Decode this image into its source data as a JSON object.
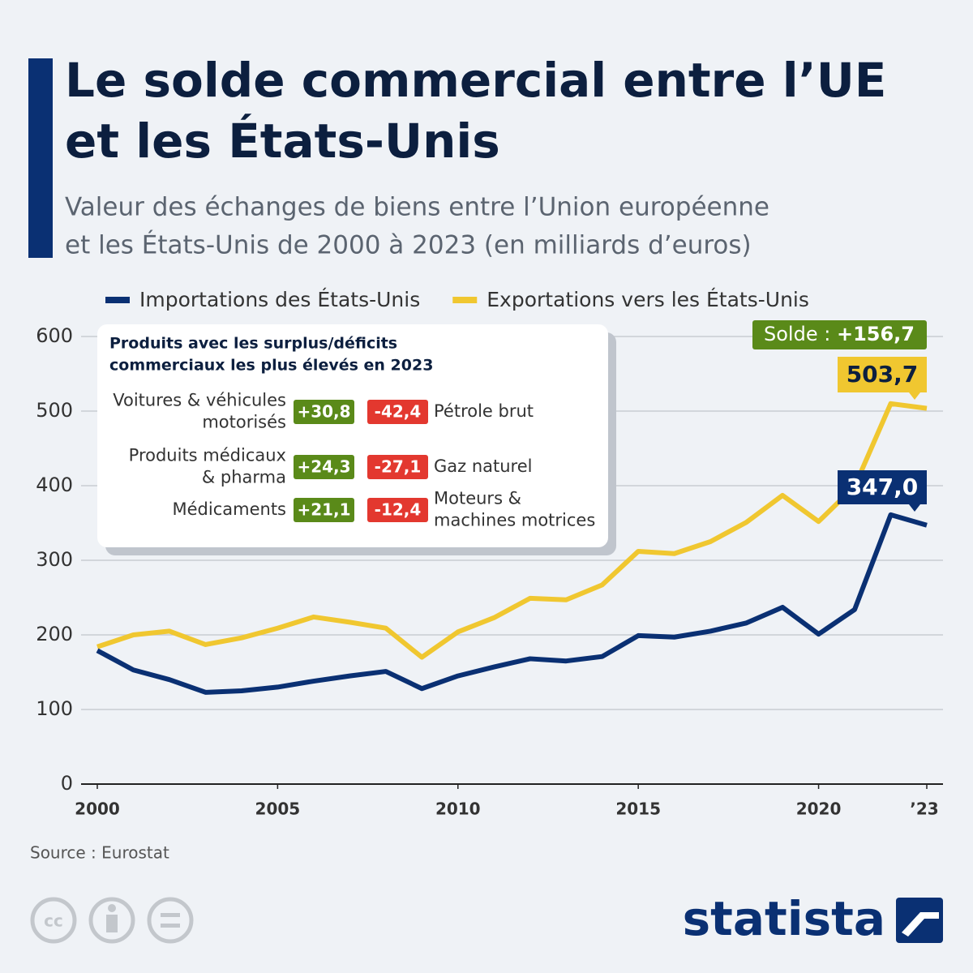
{
  "chart_data": {
    "type": "line",
    "title": [
      "Le solde commercial entre l’UE",
      "et les États-Unis"
    ],
    "subtitle": [
      "Valeur des échanges de biens entre l’Union européenne",
      "et les États-Unis de 2000 à 2023 (en milliards d’euros)"
    ],
    "x": [
      2000,
      2001,
      2002,
      2003,
      2004,
      2005,
      2006,
      2007,
      2008,
      2009,
      2010,
      2011,
      2012,
      2013,
      2014,
      2015,
      2016,
      2017,
      2018,
      2019,
      2020,
      2021,
      2022,
      2023
    ],
    "xlim": [
      2000,
      2023
    ],
    "xticks": [
      2000,
      2005,
      2010,
      2015,
      2020,
      {
        "value": 2023,
        "label": "’23"
      }
    ],
    "ylim": [
      0,
      600
    ],
    "yticks": [
      0,
      100,
      200,
      300,
      400,
      500,
      600
    ],
    "grid": true,
    "series": [
      {
        "name": "Importations des États-Unis",
        "color": "#0a3073",
        "values": [
          179,
          153,
          140,
          123,
          125,
          130,
          138,
          145,
          151,
          128,
          145,
          157,
          168,
          165,
          171,
          199,
          197,
          205,
          216,
          237,
          201,
          234,
          361,
          347.0
        ],
        "value_labels": [
          null,
          null,
          null,
          null,
          null,
          null,
          null,
          null,
          null,
          null,
          null,
          null,
          null,
          null,
          null,
          null,
          null,
          null,
          null,
          null,
          null,
          null,
          null,
          "347,0"
        ]
      },
      {
        "name": "Exportations vers les États-Unis",
        "color": "#f0c730",
        "values": [
          184,
          200,
          205,
          187,
          196,
          209,
          224,
          217,
          209,
          170,
          204,
          223,
          249,
          247,
          267,
          312,
          309,
          325,
          351,
          387,
          352,
          399,
          510,
          503.7
        ],
        "value_labels": [
          null,
          null,
          null,
          null,
          null,
          null,
          null,
          null,
          null,
          null,
          null,
          null,
          null,
          null,
          null,
          null,
          null,
          null,
          null,
          null,
          null,
          null,
          null,
          "503,7"
        ]
      }
    ],
    "annotation": {
      "prefix": "Solde :",
      "text": "+156,7"
    },
    "inset": {
      "title": [
        "Produits avec les surplus/déficits",
        "commerciaux les plus élevés en 2023"
      ],
      "rows": [
        {
          "left": [
            "Voitures & véhicules",
            "motorisés"
          ],
          "surplus": "+30,8",
          "deficit": "-42,4",
          "right": [
            "Pétrole brut"
          ]
        },
        {
          "left": [
            "Produits médicaux",
            "& pharma"
          ],
          "surplus": "+24,3",
          "deficit": "-27,1",
          "right": [
            "Gaz naturel"
          ]
        },
        {
          "left": [
            "Médicaments"
          ],
          "surplus": "+21,1",
          "deficit": "-12,4",
          "right": [
            "Moteurs &",
            "machines motrices"
          ]
        }
      ]
    },
    "source": "Source : Eurostat",
    "brand": "statista"
  }
}
